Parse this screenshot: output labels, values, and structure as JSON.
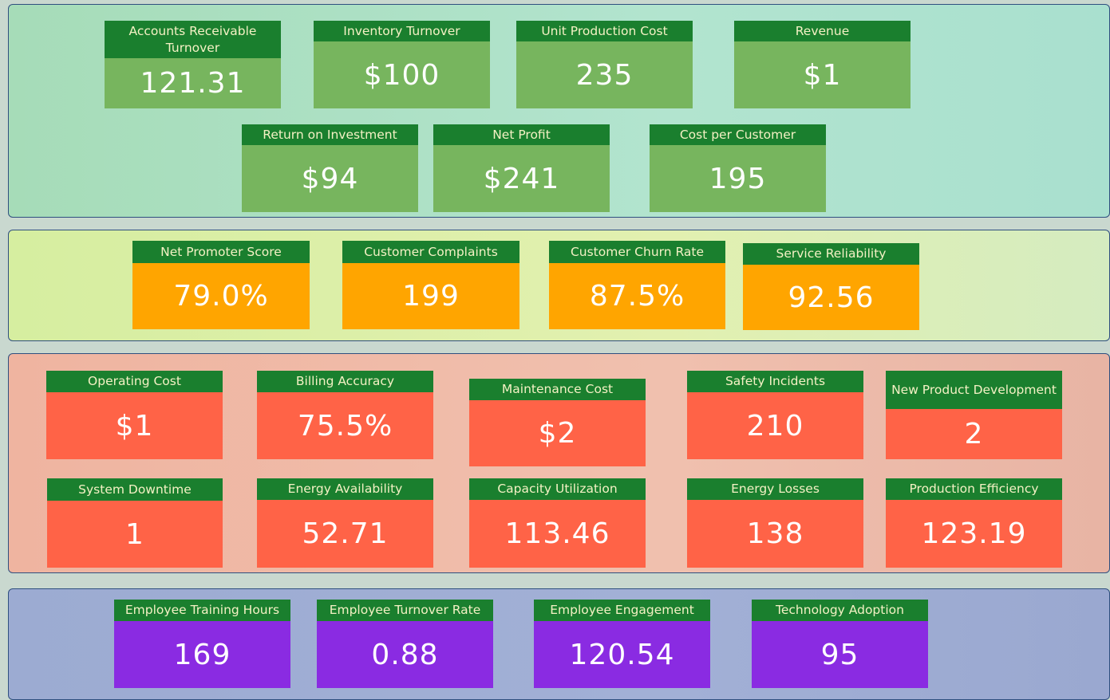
{
  "sections": [
    {
      "cards": [
        {
          "label": "Accounts Receivable Turnover",
          "value": "121.31"
        },
        {
          "label": "Inventory Turnover",
          "value": "$100"
        },
        {
          "label": "Unit Production Cost",
          "value": "235"
        },
        {
          "label": "Revenue",
          "value": "$1"
        },
        {
          "label": "Return on Investment",
          "value": "$94"
        },
        {
          "label": "Net Profit",
          "value": "$241"
        },
        {
          "label": "Cost per Customer",
          "value": "195"
        }
      ]
    },
    {
      "cards": [
        {
          "label": "Net Promoter Score",
          "value": "79.0%"
        },
        {
          "label": "Customer Complaints",
          "value": "199"
        },
        {
          "label": "Customer Churn Rate",
          "value": "87.5%"
        },
        {
          "label": "Service Reliability",
          "value": "92.56"
        }
      ]
    },
    {
      "cards": [
        {
          "label": "Operating Cost",
          "value": "$1"
        },
        {
          "label": "Billing Accuracy",
          "value": "75.5%"
        },
        {
          "label": "Maintenance Cost",
          "value": "$2"
        },
        {
          "label": "Safety Incidents",
          "value": "210"
        },
        {
          "label": "New Product Development",
          "value": "2"
        },
        {
          "label": "System Downtime",
          "value": "1"
        },
        {
          "label": "Energy Availability",
          "value": "52.71"
        },
        {
          "label": "Capacity Utilization",
          "value": "113.46"
        },
        {
          "label": "Energy Losses",
          "value": "138"
        },
        {
          "label": "Production Efficiency",
          "value": "123.19"
        }
      ]
    },
    {
      "cards": [
        {
          "label": "Employee Training Hours",
          "value": "169"
        },
        {
          "label": "Employee Turnover Rate",
          "value": "0.88"
        },
        {
          "label": "Employee Engagement",
          "value": "120.54"
        },
        {
          "label": "Technology Adoption",
          "value": "95"
        }
      ]
    }
  ]
}
